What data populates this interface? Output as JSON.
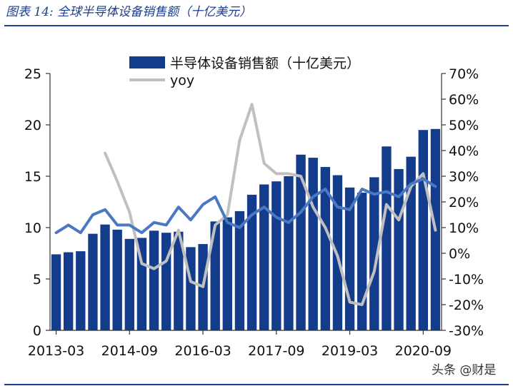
{
  "figure": {
    "title": "图表 14:  全球半导体设备销售额（十亿美元）",
    "watermark": "头条 @财是"
  },
  "chart_data": {
    "type": "bar",
    "title": "",
    "xlabel": "",
    "ylabel": "",
    "ylim": [
      0,
      25
    ],
    "y2lim": [
      -0.3,
      0.7
    ],
    "y_ticks": [
      "0",
      "5",
      "10",
      "15",
      "20",
      "25"
    ],
    "y2_ticks": [
      "-30%",
      "-20%",
      "-10%",
      "0%",
      "10%",
      "20%",
      "30%",
      "40%",
      "50%",
      "60%",
      "70%"
    ],
    "x_tick_labels": [
      "2013-03",
      "2014-09",
      "2016-03",
      "2017-09",
      "2019-03",
      "2020-09"
    ],
    "x_tick_index": [
      0,
      6,
      12,
      18,
      24,
      30
    ],
    "legend_position": "top",
    "colors": {
      "bar": "#143c8c",
      "yoy": "#c0c0c0",
      "third": "#4a78c2"
    },
    "categories": [
      "2013-03",
      "2013-06",
      "2013-09",
      "2013-12",
      "2014-03",
      "2014-06",
      "2014-09",
      "2014-12",
      "2015-03",
      "2015-06",
      "2015-09",
      "2015-12",
      "2016-03",
      "2016-06",
      "2016-09",
      "2016-12",
      "2017-03",
      "2017-06",
      "2017-09",
      "2017-12",
      "2018-03",
      "2018-06",
      "2018-09",
      "2018-12",
      "2019-03",
      "2019-06",
      "2019-09",
      "2019-12",
      "2020-03",
      "2020-06",
      "2020-09",
      "2020-12"
    ],
    "series": [
      {
        "name": "半导体设备销售额（十亿美元）",
        "type": "bar",
        "axis": "left",
        "values": [
          7.4,
          7.6,
          7.7,
          9.4,
          10.3,
          9.8,
          8.9,
          9.0,
          9.7,
          9.5,
          9.6,
          8.1,
          8.4,
          10.6,
          11.0,
          11.6,
          13.2,
          14.2,
          14.5,
          15.0,
          17.1,
          16.8,
          15.9,
          15.1,
          13.9,
          13.4,
          14.9,
          17.9,
          15.7,
          16.9,
          19.5,
          19.6
        ]
      },
      {
        "name": "yoy",
        "type": "line",
        "axis": "right",
        "values": [
          null,
          null,
          null,
          null,
          0.39,
          0.28,
          0.16,
          -0.04,
          -0.06,
          -0.03,
          0.09,
          -0.11,
          -0.13,
          0.11,
          0.15,
          0.44,
          0.58,
          0.35,
          0.31,
          0.31,
          0.3,
          0.18,
          0.1,
          -0.01,
          -0.19,
          -0.2,
          -0.07,
          0.19,
          0.13,
          0.26,
          0.31,
          0.09
        ]
      },
      {
        "type": "line",
        "axis": "right",
        "values": [
          0.08,
          0.11,
          0.08,
          0.15,
          0.17,
          0.11,
          0.11,
          0.08,
          0.12,
          0.11,
          0.18,
          0.13,
          0.19,
          0.22,
          0.12,
          0.1,
          0.15,
          0.18,
          0.14,
          0.12,
          0.16,
          0.22,
          0.25,
          0.18,
          0.17,
          0.25,
          0.23,
          0.24,
          0.22,
          0.27,
          0.29,
          0.26
        ]
      }
    ]
  }
}
